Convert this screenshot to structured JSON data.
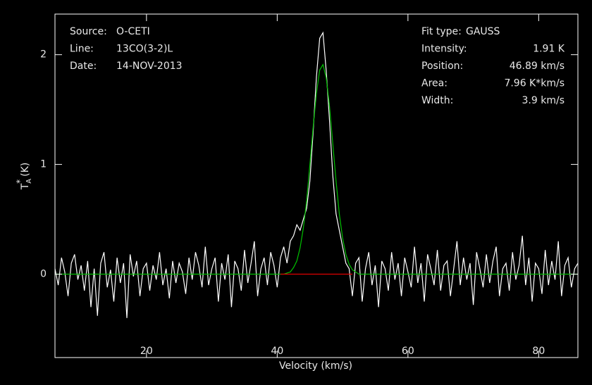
{
  "chart_data": {
    "type": "line",
    "x_label": "Velocity (km/s)",
    "y_label": {
      "base": "T",
      "sub": "A",
      "sup": "*",
      "unit": "(K)"
    },
    "xlim": [
      6,
      86
    ],
    "ylim": [
      -0.76,
      2.37
    ],
    "xticks": [
      20,
      40,
      60,
      80
    ],
    "yticks": [
      0,
      1,
      2
    ],
    "info_left": [
      {
        "label": "Source:",
        "text": "O-CETI"
      },
      {
        "label": "Line:",
        "text": "13CO(3-2)L"
      },
      {
        "label": "Date:",
        "text": "14-NOV-2013"
      }
    ],
    "info_right": [
      {
        "label": "Fit type:",
        "text": "GAUSS"
      },
      {
        "label": "Intensity:",
        "text": "1.91 K"
      },
      {
        "label": "Position:",
        "text": "46.89 km/s"
      },
      {
        "label": "Area:",
        "text": "7.96 K*km/s"
      },
      {
        "label": "Width:",
        "text": "3.9 km/s"
      }
    ],
    "series": [
      {
        "color": "#ffffff",
        "x": [
          6,
          6.5,
          7,
          7.5,
          8,
          8.5,
          9,
          9.5,
          10,
          10.5,
          11,
          11.5,
          12,
          12.5,
          13,
          13.5,
          14,
          14.5,
          15,
          15.5,
          16,
          16.5,
          17,
          17.5,
          18,
          18.5,
          19,
          19.5,
          20,
          20.5,
          21,
          21.5,
          22,
          22.5,
          23,
          23.5,
          24,
          24.5,
          25,
          25.5,
          26,
          26.5,
          27,
          27.5,
          28,
          28.5,
          29,
          29.5,
          30,
          30.5,
          31,
          31.5,
          32,
          32.5,
          33,
          33.5,
          34,
          34.5,
          35,
          35.5,
          36,
          36.5,
          37,
          37.5,
          38,
          38.5,
          39,
          39.5,
          40,
          40.5,
          41,
          41.5,
          42,
          42.5,
          43,
          43.5,
          44,
          44.5,
          45,
          45.5,
          46,
          46.5,
          47,
          47.5,
          48,
          48.5,
          49,
          49.5,
          50,
          50.5,
          51,
          51.5,
          52,
          52.5,
          53,
          53.5,
          54,
          54.5,
          55,
          55.5,
          56,
          56.5,
          57,
          57.5,
          58,
          58.5,
          59,
          59.5,
          60,
          60.5,
          61,
          61.5,
          62,
          62.5,
          63,
          63.5,
          64,
          64.5,
          65,
          65.5,
          66,
          66.5,
          67,
          67.5,
          68,
          68.5,
          69,
          69.5,
          70,
          70.5,
          71,
          71.5,
          72,
          72.5,
          73,
          73.5,
          74,
          74.5,
          75,
          75.5,
          76,
          76.5,
          77,
          77.5,
          78,
          78.5,
          79,
          79.5,
          80,
          80.5,
          81,
          81.5,
          82,
          82.5,
          83,
          83.5,
          84,
          84.5,
          85,
          85.5,
          86
        ],
        "values": [
          0.05,
          -0.1,
          0.15,
          0.02,
          -0.2,
          0.1,
          0.18,
          -0.05,
          0.08,
          -0.15,
          0.12,
          -0.3,
          0.05,
          -0.38,
          0.1,
          0.2,
          -0.12,
          0.04,
          -0.25,
          0.15,
          -0.08,
          0.1,
          -0.4,
          0.18,
          -0.02,
          0.12,
          -0.2,
          0.05,
          0.1,
          -0.15,
          0.08,
          -0.05,
          0.2,
          -0.1,
          0.05,
          -0.22,
          0.12,
          -0.08,
          0.1,
          0.02,
          -0.18,
          0.15,
          -0.05,
          0.2,
          0.08,
          -0.12,
          0.25,
          -0.1,
          0.05,
          0.15,
          -0.25,
          0.1,
          -0.05,
          0.18,
          -0.3,
          0.12,
          0.05,
          -0.15,
          0.22,
          -0.08,
          0.1,
          0.3,
          -0.2,
          0.05,
          0.15,
          -0.1,
          0.2,
          0.08,
          -0.12,
          0.15,
          0.25,
          0.1,
          0.3,
          0.35,
          0.45,
          0.4,
          0.5,
          0.6,
          0.85,
          1.3,
          1.8,
          2.15,
          2.2,
          1.85,
          1.4,
          0.9,
          0.55,
          0.4,
          0.25,
          0.1,
          0.05,
          -0.2,
          0.1,
          0.15,
          -0.25,
          0.05,
          0.2,
          -0.1,
          0.08,
          -0.3,
          0.12,
          0.05,
          -0.15,
          0.2,
          -0.05,
          0.1,
          -0.2,
          0.15,
          0.02,
          -0.12,
          0.25,
          -0.08,
          0.1,
          -0.25,
          0.18,
          0.05,
          -0.1,
          0.22,
          -0.15,
          0.08,
          0.12,
          -0.2,
          0.05,
          0.3,
          -0.1,
          0.15,
          -0.05,
          0.1,
          -0.28,
          0.2,
          0.05,
          -0.12,
          0.18,
          -0.08,
          0.12,
          0.25,
          -0.2,
          0.05,
          0.1,
          -0.15,
          0.2,
          -0.05,
          0.08,
          0.35,
          -0.1,
          0.15,
          -0.25,
          0.1,
          0.05,
          -0.18,
          0.22,
          -0.1,
          0.12,
          -0.05,
          0.3,
          -0.2,
          0.08,
          0.15,
          -0.12,
          0.05,
          0.1
        ]
      },
      {
        "color": "#00c000",
        "x": [
          6,
          6.5,
          7,
          7.5,
          8,
          8.5,
          9,
          9.5,
          10,
          10.5,
          11,
          11.5,
          12,
          12.5,
          13,
          13.5,
          14,
          14.5,
          15,
          15.5,
          16,
          16.5,
          17,
          17.5,
          18,
          18.5,
          19,
          19.5,
          20,
          20.5,
          21,
          21.5,
          22,
          22.5,
          23,
          23.5,
          24,
          24.5,
          25,
          25.5,
          26,
          26.5,
          27,
          27.5,
          28,
          28.5,
          29,
          29.5,
          30,
          30.5,
          31,
          31.5,
          32,
          32.5,
          33,
          33.5,
          34,
          34.5,
          35,
          35.5,
          36,
          36.5,
          37,
          37.5,
          38,
          38.5,
          39,
          39.5,
          40,
          40.5,
          41,
          41.5,
          42,
          42.5,
          43,
          43.5,
          44,
          44.5,
          45,
          45.5,
          46,
          46.5,
          47,
          47.5,
          48,
          48.5,
          49,
          49.5,
          50,
          50.5,
          51,
          51.5,
          52,
          52.5,
          53,
          53.5,
          54,
          54.5,
          55,
          55.5,
          56,
          56.5,
          57,
          57.5,
          58,
          58.5,
          59,
          59.5,
          60,
          60.5,
          61,
          61.5,
          62,
          62.5,
          63,
          63.5,
          64,
          64.5,
          65,
          65.5,
          66,
          66.5,
          67,
          67.5,
          68,
          68.5,
          69,
          69.5,
          70,
          70.5,
          71,
          71.5,
          72,
          72.5,
          73,
          73.5,
          74,
          74.5,
          75,
          75.5,
          76,
          76.5,
          77,
          77.5,
          78,
          78.5,
          79,
          79.5,
          80,
          80.5,
          81,
          81.5,
          82,
          82.5,
          83,
          83.5,
          84,
          84.5,
          85,
          85.5,
          86
        ],
        "values": [
          0,
          0,
          0,
          0,
          0,
          0,
          0,
          0,
          0,
          0,
          0,
          0,
          0,
          0,
          0,
          0,
          0,
          0,
          0,
          0,
          0,
          0,
          0,
          0,
          0,
          0,
          0,
          0,
          0,
          0,
          0,
          0,
          0,
          0,
          0,
          0,
          0,
          0,
          0,
          0,
          0,
          0,
          0,
          0,
          0,
          0,
          0,
          0,
          0,
          0,
          0,
          0,
          0,
          0,
          0,
          0,
          0,
          0,
          0,
          0,
          0,
          0,
          0,
          0,
          0,
          0,
          0,
          0,
          0,
          0,
          0,
          0.01,
          0.02,
          0.06,
          0.12,
          0.24,
          0.42,
          0.67,
          1.0,
          1.34,
          1.65,
          1.86,
          1.91,
          1.79,
          1.53,
          1.19,
          0.85,
          0.55,
          0.33,
          0.18,
          0.09,
          0.04,
          0.02,
          0,
          0,
          0,
          0,
          0,
          0,
          0,
          0,
          0,
          0,
          0,
          0,
          0,
          0,
          0,
          0,
          0,
          0,
          0,
          0,
          0,
          0,
          0,
          0,
          0,
          0,
          0,
          0,
          0,
          0,
          0,
          0,
          0,
          0,
          0,
          0,
          0,
          0,
          0,
          0,
          0,
          0,
          0,
          0,
          0,
          0,
          0,
          0,
          0,
          0,
          0,
          0,
          0,
          0,
          0,
          0,
          0,
          0,
          0,
          0,
          0,
          0,
          0,
          0,
          0,
          0,
          0,
          0
        ]
      },
      {
        "color": "#e00000",
        "x": [
          40.5,
          51.5
        ],
        "values": [
          0,
          0
        ]
      }
    ]
  }
}
